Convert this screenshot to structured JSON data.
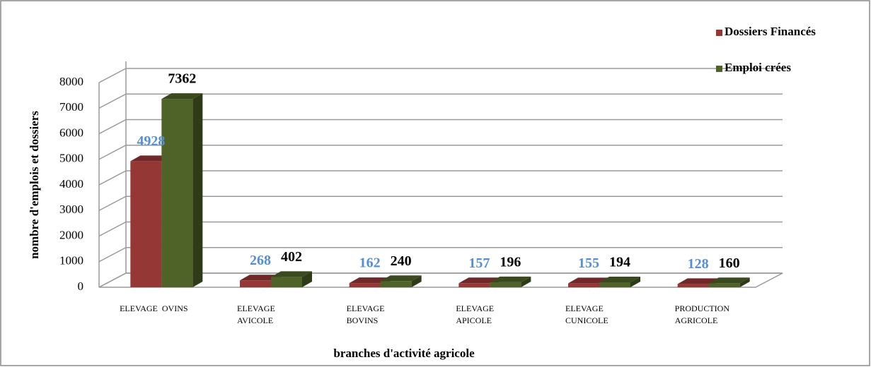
{
  "chart_data": {
    "type": "bar3d",
    "categories": [
      "ELEVAGE  OVINS",
      "ELEVAGE\nAVICOLE",
      "ELEVAGE\nBOVINS",
      "ELEVAGE\nAPICOLE",
      "ELEVAGE\nCUNICOLE",
      "PRODUCTION\nAGRICOLE"
    ],
    "series": [
      {
        "name": "Dossiers Financés",
        "color": "#953735",
        "label_color": "#558ed5",
        "values": [
          4928,
          268,
          162,
          157,
          155,
          128
        ]
      },
      {
        "name": "Emploi crées",
        "color": "#4f6228",
        "label_color": "#000000",
        "values": [
          7362,
          402,
          240,
          196,
          194,
          160
        ]
      }
    ],
    "ylim": [
      0,
      8000
    ],
    "yticks": [
      0,
      1000,
      2000,
      3000,
      4000,
      5000,
      6000,
      7000,
      8000
    ],
    "grid": true,
    "legend": "top-right",
    "xlabel": "branches d'activité agricole",
    "ylabel": "nombre d'emplois et dossiers"
  }
}
